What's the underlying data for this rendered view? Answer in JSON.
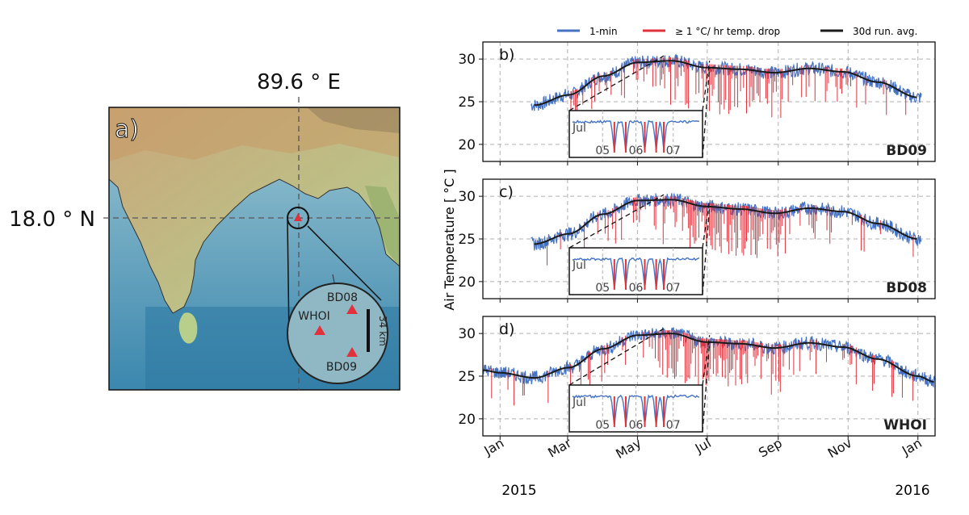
{
  "colors": {
    "one_min": "#4472c4",
    "drop": "#e0323c",
    "avg": "#1a1a1a",
    "grid": "#b0b0b0",
    "marker": "#e0323c",
    "zoom_fill": "#8fb8c4"
  },
  "map": {
    "panel_label": "a)",
    "lon_label": "89.6 ° E",
    "lat_label": "18.0 ° N",
    "stations": [
      {
        "name": "BD08"
      },
      {
        "name": "WHOI"
      },
      {
        "name": "BD09"
      }
    ],
    "scale_label": "34 km"
  },
  "legend": [
    {
      "label": "1-min",
      "color_key": "one_min"
    },
    {
      "label": "≥ 1 °C/ hr temp. drop",
      "color_key": "drop"
    },
    {
      "label": "30d run. avg.",
      "color_key": "avg"
    }
  ],
  "shared": {
    "ylabel": "Air Temperature [ °C ]",
    "year_start": "2015",
    "year_end": "2016"
  },
  "chart_data": [
    {
      "type": "line",
      "panel_label": "b)",
      "station": "BD09",
      "xlabel": "",
      "ylabel": "Air Temperature [ °C ]",
      "x_ticks": [
        "Jan",
        "Mar",
        "May",
        "Jul",
        "Sep",
        "Nov",
        "Jan"
      ],
      "x_tick_days": [
        0,
        59,
        120,
        181,
        243,
        304,
        365
      ],
      "xlim_days": [
        -15,
        380
      ],
      "y_ticks": [
        20,
        25,
        30
      ],
      "ylim": [
        18,
        32
      ],
      "grid": true,
      "series": [
        {
          "name": "30d run. avg.",
          "days": [
            30,
            60,
            90,
            120,
            150,
            180,
            210,
            240,
            270,
            300,
            330,
            365
          ],
          "values": [
            24.6,
            25.8,
            28.0,
            29.6,
            29.8,
            29.0,
            28.8,
            28.4,
            28.9,
            28.5,
            27.3,
            25.5
          ]
        }
      ],
      "inset": {
        "month": "Jul",
        "ticks": [
          "05",
          "06",
          "07"
        ]
      }
    },
    {
      "type": "line",
      "panel_label": "c)",
      "station": "BD08",
      "xlabel": "",
      "ylabel": "Air Temperature [ °C ]",
      "x_ticks": [
        "Jan",
        "Mar",
        "May",
        "Jul",
        "Sep",
        "Nov",
        "Jan"
      ],
      "x_tick_days": [
        0,
        59,
        120,
        181,
        243,
        304,
        365
      ],
      "xlim_days": [
        -15,
        380
      ],
      "y_ticks": [
        20,
        25,
        30
      ],
      "ylim": [
        18,
        32
      ],
      "grid": true,
      "series": [
        {
          "name": "30d run. avg.",
          "days": [
            30,
            60,
            90,
            120,
            150,
            180,
            210,
            240,
            270,
            300,
            330,
            365
          ],
          "values": [
            24.4,
            25.6,
            27.9,
            29.5,
            29.6,
            28.8,
            28.5,
            28.0,
            28.6,
            28.2,
            26.8,
            25.0
          ]
        }
      ],
      "inset": {
        "month": "Jul",
        "ticks": [
          "05",
          "06",
          "07"
        ]
      }
    },
    {
      "type": "line",
      "panel_label": "d)",
      "station": "WHOI",
      "xlabel": "",
      "ylabel": "Air Temperature [ °C ]",
      "x_ticks": [
        "Jan",
        "Mar",
        "May",
        "Jul",
        "Sep",
        "Nov",
        "Jan"
      ],
      "x_tick_days": [
        0,
        59,
        120,
        181,
        243,
        304,
        365
      ],
      "xlim_days": [
        -15,
        380
      ],
      "y_ticks": [
        20,
        25,
        30
      ],
      "ylim": [
        18,
        32
      ],
      "grid": true,
      "series": [
        {
          "name": "30d run. avg.",
          "days": [
            -15,
            0,
            30,
            60,
            90,
            120,
            150,
            180,
            210,
            240,
            270,
            300,
            330,
            365,
            380
          ],
          "values": [
            25.7,
            25.4,
            24.8,
            26.0,
            28.2,
            29.8,
            30.0,
            29.0,
            28.8,
            28.3,
            28.9,
            28.4,
            27.0,
            25.0,
            24.3
          ]
        }
      ],
      "inset": {
        "month": "Jul",
        "ticks": [
          "05",
          "06",
          "07"
        ]
      }
    }
  ]
}
